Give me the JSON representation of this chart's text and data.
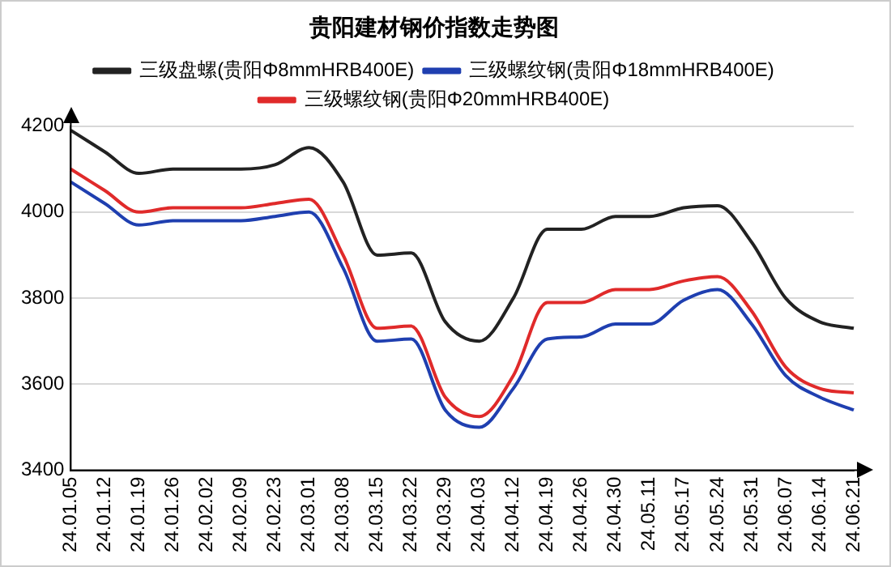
{
  "chart_data": {
    "type": "line",
    "title": "贵阳建材钢价指数走势图",
    "categories": [
      "24.01.05",
      "24.01.12",
      "24.01.19",
      "24.01.26",
      "24.02.02",
      "24.02.09",
      "24.02.23",
      "24.03.01",
      "24.03.08",
      "24.03.15",
      "24.03.22",
      "24.03.29",
      "24.04.03",
      "24.04.12",
      "24.04.19",
      "24.04.26",
      "24.04.30",
      "24.05.11",
      "24.05.17",
      "24.05.24",
      "24.05.31",
      "24.06.07",
      "24.06.14",
      "24.06.21"
    ],
    "series": [
      {
        "name": "三级盘螺(贵阳Φ8mmHRB400E)",
        "color": "#222222",
        "values": [
          4190,
          4140,
          4090,
          4100,
          4100,
          4100,
          4110,
          4150,
          4070,
          3900,
          3905,
          3745,
          3700,
          3800,
          3960,
          3960,
          3990,
          3990,
          4010,
          4015,
          3930,
          3800,
          3745,
          3730
        ]
      },
      {
        "name": "三级螺纹钢(贵阳Φ18mmHRB400E)",
        "color": "#1f3fb0",
        "values": [
          4070,
          4020,
          3970,
          3980,
          3980,
          3980,
          3990,
          4000,
          3870,
          3700,
          3705,
          3540,
          3500,
          3590,
          3705,
          3710,
          3740,
          3740,
          3795,
          3820,
          3740,
          3620,
          3570,
          3540
        ]
      },
      {
        "name": "三级螺纹钢(贵阳Φ20mmHRB400E)",
        "color": "#e02a2a",
        "values": [
          4100,
          4050,
          4000,
          4010,
          4010,
          4010,
          4020,
          4030,
          3900,
          3730,
          3735,
          3570,
          3525,
          3620,
          3790,
          3790,
          3820,
          3820,
          3840,
          3850,
          3770,
          3640,
          3590,
          3580
        ]
      }
    ],
    "ylim": [
      3400,
      4200
    ],
    "yticks": [
      3400,
      3600,
      3800,
      4000,
      4200
    ],
    "grid": "y",
    "legend": "top",
    "marker": "none",
    "line_style": "solid"
  }
}
